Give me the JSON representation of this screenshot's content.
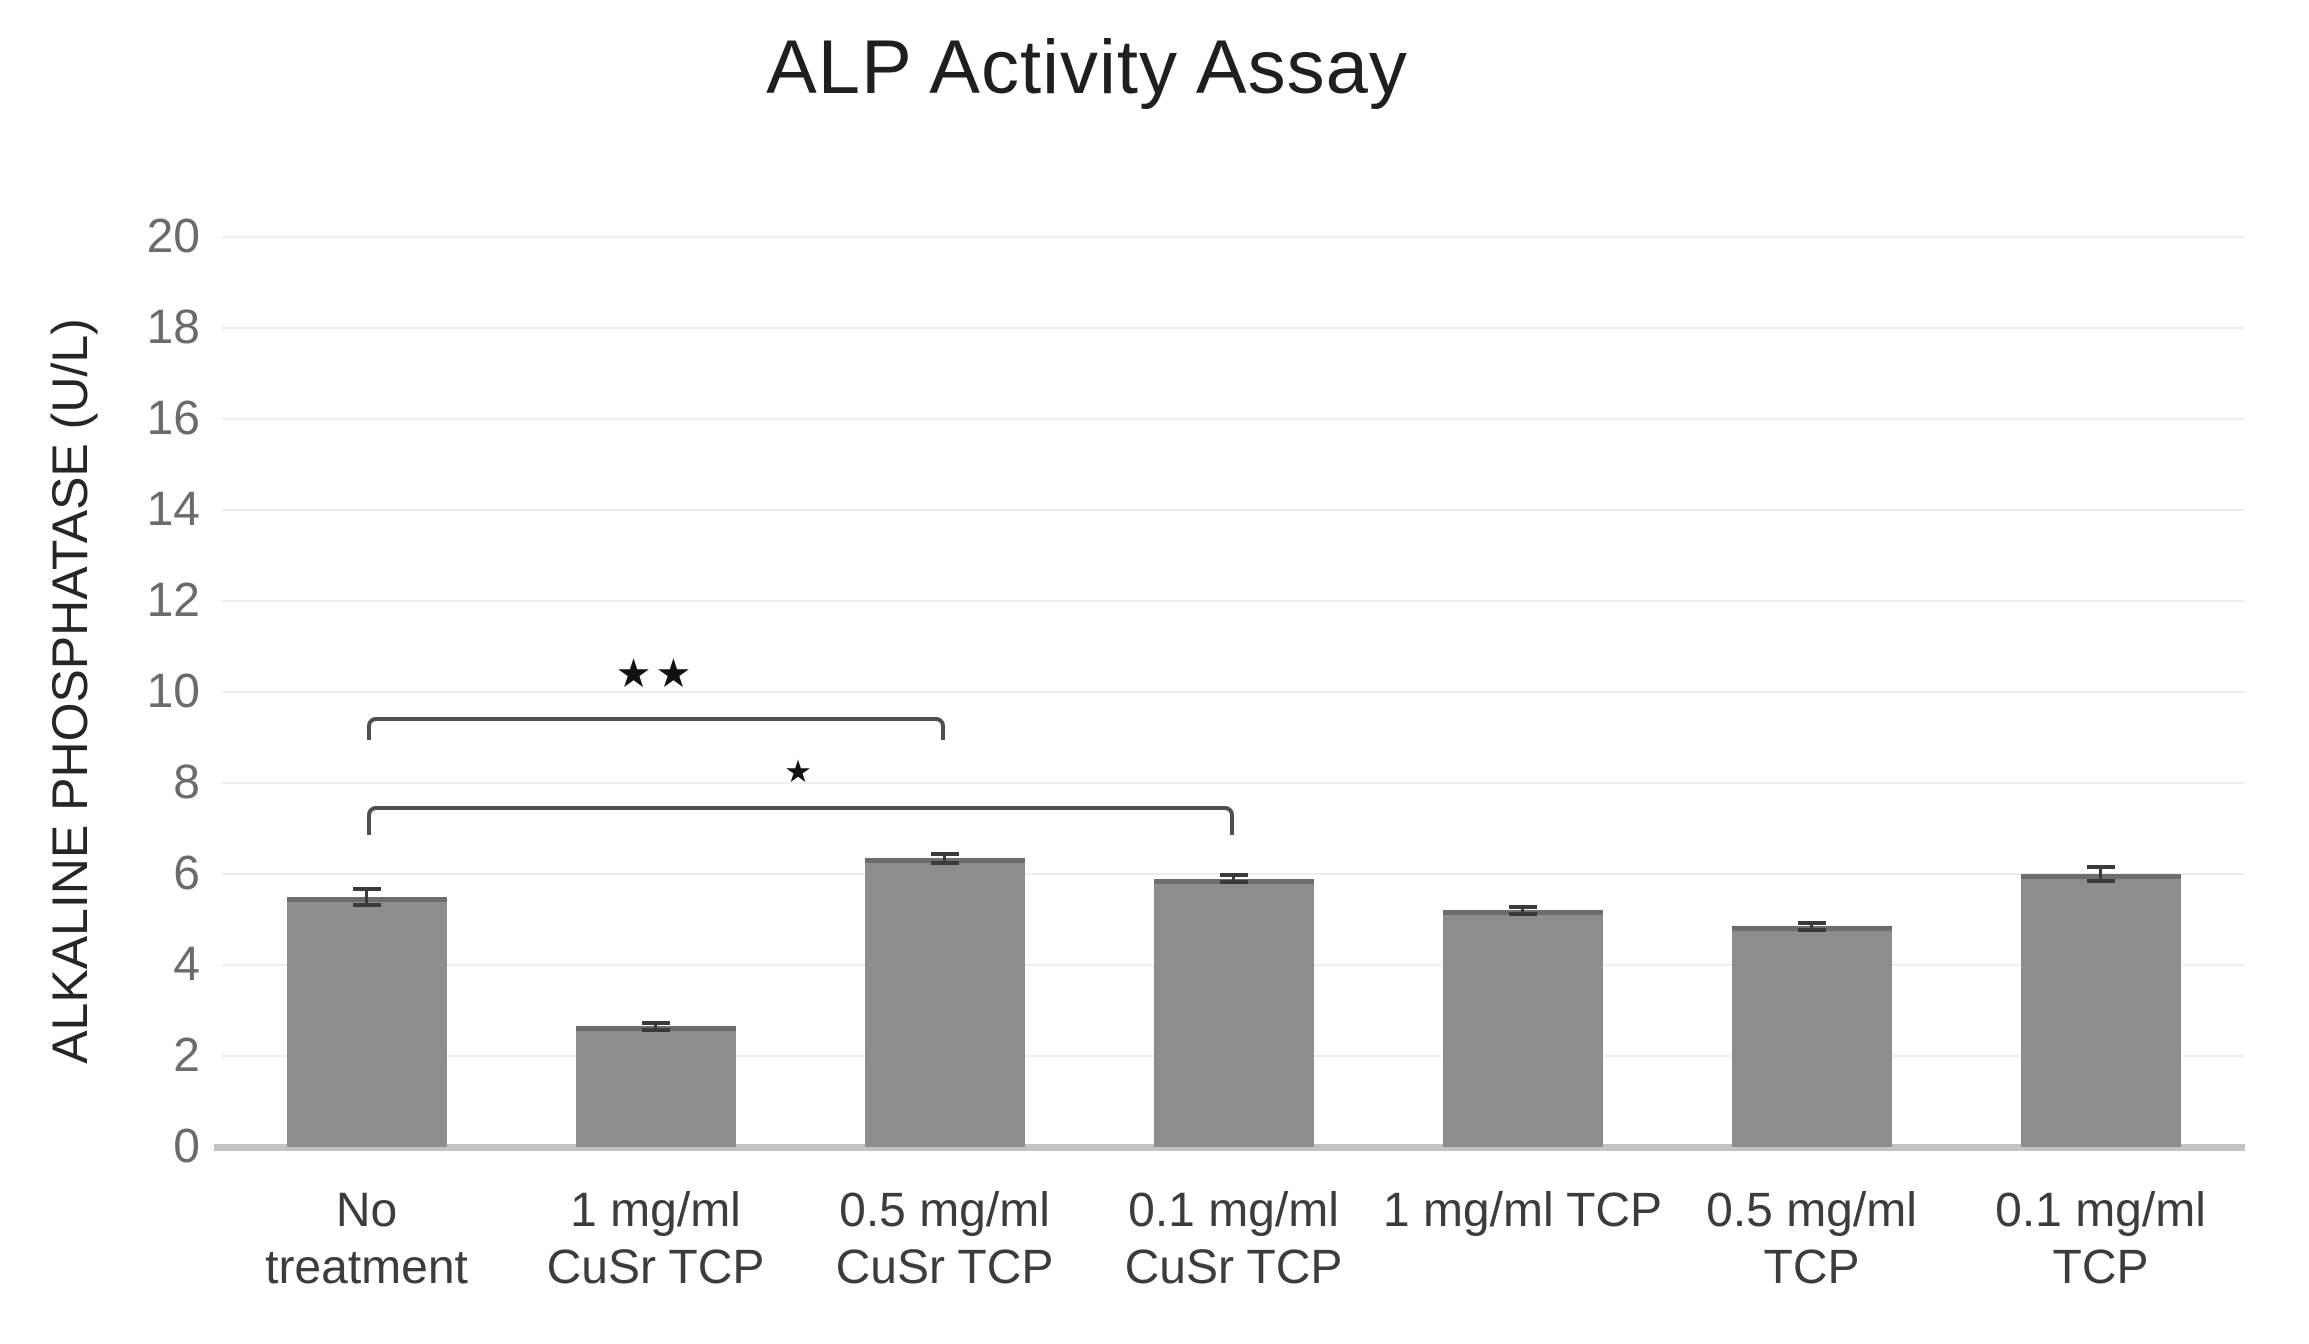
{
  "chart_data": {
    "type": "bar",
    "title": "ALP Activity Assay",
    "ylabel": "ALKALINE PHOSPHATASE (U/L)",
    "xlabel": "",
    "ylim": [
      0,
      20
    ],
    "ytick_step": 2,
    "yticks": [
      0,
      2,
      4,
      6,
      8,
      10,
      12,
      14,
      16,
      18,
      20
    ],
    "grid": true,
    "legend": "none",
    "categories": [
      "No treatment",
      "1 mg/ml CuSr TCP",
      "0.5 mg/ml CuSr TCP",
      "0.1 mg/ml CuSr TCP",
      "1 mg/ml TCP",
      "0.5 mg/ml TCP",
      "0.1 mg/ml TCP"
    ],
    "category_lines": [
      [
        "No",
        "treatment"
      ],
      [
        "1 mg/ml",
        "CuSr TCP"
      ],
      [
        "0.5 mg/ml",
        "CuSr TCP"
      ],
      [
        "0.1 mg/ml",
        "CuSr TCP"
      ],
      [
        "1 mg/ml TCP"
      ],
      [
        "0.5 mg/ml",
        "TCP"
      ],
      [
        "0.1 mg/ml",
        "TCP"
      ]
    ],
    "values": [
      5.5,
      2.65,
      6.35,
      5.9,
      5.2,
      4.85,
      6.0
    ],
    "errors": [
      0.18,
      0.07,
      0.1,
      0.07,
      0.08,
      0.07,
      0.15
    ],
    "significance": [
      {
        "from_category": "No treatment",
        "to_category": "0.5 mg/ml CuSr TCP",
        "from": 0,
        "to": 2,
        "label": "★★",
        "bracket_y": 9.45,
        "label_y": 10.4,
        "tick_len": 0.5
      },
      {
        "from_category": "No treatment",
        "to_category": "0.1 mg/ml CuSr TCP",
        "from": 0,
        "to": 3,
        "label": "★",
        "bracket_y": 7.5,
        "label_y": 8.25,
        "tick_len": 0.65
      }
    ],
    "colors": {
      "background": "#ffffff",
      "bar_fill": "#8d8d8d",
      "bar_edge": "#6d6d6d",
      "error_bar": "#3a3a3a",
      "bracket": "#4f4f4f",
      "star": "#111111",
      "gridline": "#eeeeee",
      "axis_line": "#c3c3c3",
      "title_text": "#1f1f1f",
      "tick_text": "#6b6b6b",
      "category_text": "#3c3c3c",
      "axis_title_text": "#262626"
    }
  }
}
